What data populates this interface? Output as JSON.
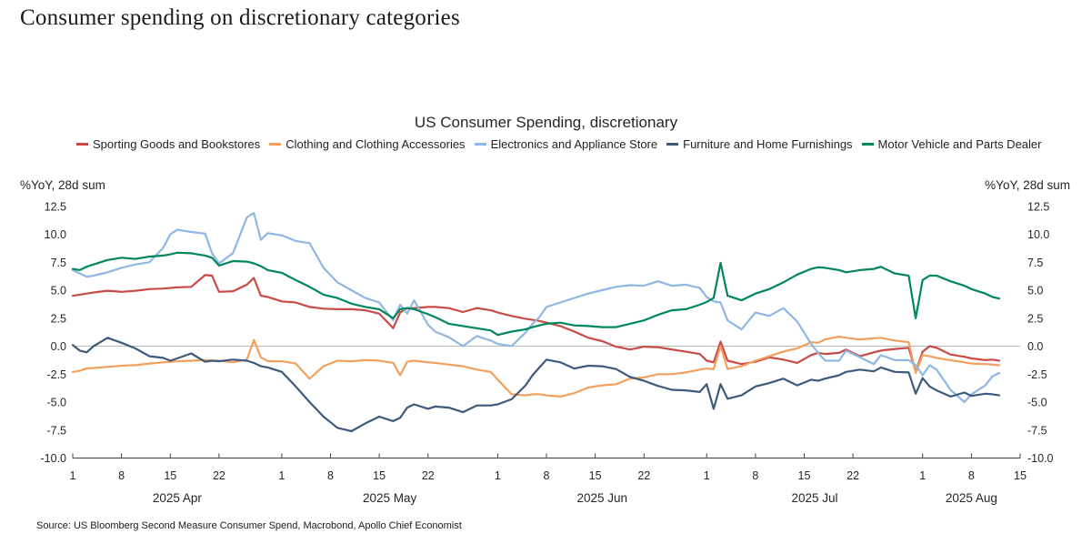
{
  "page_title": "Consumer spending on discretionary categories",
  "source": "Source: US Bloomberg Second Measure Consumer Spend, Macrobond, Apollo Chief Economist",
  "colors": {
    "zero_line": "#b9b9b9",
    "axis": "#404040",
    "tick_text": "#262626"
  },
  "chart_data": {
    "type": "line",
    "title": "US Consumer Spending, discretionary",
    "ylabel_left": "%YoY, 28d sum",
    "ylabel_right": "%YoY, 28d sum",
    "ylim": [
      -10,
      13.5
    ],
    "y_ticks": [
      12.5,
      10,
      7.5,
      5,
      2.5,
      0,
      -2.5,
      -5,
      -7.5,
      -10
    ],
    "y_tick_format": "one_decimal",
    "grid": "zero-line-only",
    "legend_position": "top-left-two-rows",
    "x_unit": "days since 2025-04-01",
    "x_domain": [
      0,
      136
    ],
    "x_ticks": [
      {
        "day": 0,
        "label": "1"
      },
      {
        "day": 7,
        "label": "8"
      },
      {
        "day": 14,
        "label": "15"
      },
      {
        "day": 21,
        "label": "22"
      },
      {
        "day": 30,
        "label": "1"
      },
      {
        "day": 37,
        "label": "8"
      },
      {
        "day": 44,
        "label": "15"
      },
      {
        "day": 51,
        "label": "22"
      },
      {
        "day": 61,
        "label": "1"
      },
      {
        "day": 68,
        "label": "8"
      },
      {
        "day": 75,
        "label": "15"
      },
      {
        "day": 82,
        "label": "22"
      },
      {
        "day": 91,
        "label": "1"
      },
      {
        "day": 98,
        "label": "8"
      },
      {
        "day": 105,
        "label": "15"
      },
      {
        "day": 112,
        "label": "22"
      },
      {
        "day": 122,
        "label": "1"
      },
      {
        "day": 129,
        "label": "8"
      },
      {
        "day": 136,
        "label": "15"
      }
    ],
    "month_labels": [
      {
        "label": "2025 Apr",
        "day": 15
      },
      {
        "label": "2025 May",
        "day": 45.5
      },
      {
        "label": "2025 Jun",
        "day": 76
      },
      {
        "label": "2025 Jul",
        "day": 106.5
      },
      {
        "label": "2025 Aug",
        "day": 129
      }
    ],
    "x": [
      0,
      1,
      2,
      3,
      5,
      7,
      9,
      11,
      13,
      14,
      15,
      17,
      19,
      20,
      21,
      23,
      25,
      26,
      27,
      28,
      30,
      32,
      34,
      36,
      38,
      40,
      42,
      44,
      46,
      47,
      48,
      49,
      51,
      52,
      54,
      56,
      58,
      60,
      61,
      63,
      65,
      66,
      67,
      68,
      70,
      72,
      74,
      76,
      78,
      80,
      82,
      84,
      86,
      88,
      90,
      91,
      92,
      93,
      94,
      96,
      98,
      100,
      102,
      104,
      106,
      107,
      108,
      110,
      111,
      113,
      115,
      116,
      118,
      120,
      121,
      122,
      123,
      124,
      126,
      128,
      129,
      131,
      132,
      133
    ],
    "series": [
      {
        "name": "Sporting Goods and Bookstores",
        "color": "#c94a46",
        "values": [
          4.5,
          4.6,
          4.7,
          4.8,
          4.95,
          4.85,
          4.95,
          5.1,
          5.15,
          5.2,
          5.25,
          5.3,
          6.35,
          6.3,
          4.85,
          4.9,
          5.5,
          6.1,
          4.5,
          4.4,
          4.0,
          3.9,
          3.5,
          3.35,
          3.3,
          3.3,
          3.2,
          2.9,
          1.6,
          3.0,
          3.4,
          3.4,
          3.5,
          3.5,
          3.4,
          3.05,
          3.4,
          3.2,
          3.0,
          2.7,
          2.45,
          2.35,
          2.25,
          2.1,
          1.8,
          1.3,
          0.75,
          0.45,
          -0.05,
          -0.3,
          -0.05,
          -0.1,
          -0.3,
          -0.5,
          -0.7,
          -1.3,
          -1.45,
          0.4,
          -1.3,
          -1.6,
          -1.4,
          -1.0,
          -1.2,
          -1.5,
          -0.8,
          -0.6,
          -0.7,
          -0.6,
          -0.3,
          -0.9,
          -0.55,
          -0.4,
          -0.25,
          -0.15,
          -2.3,
          -0.5,
          0.0,
          -0.15,
          -0.75,
          -0.95,
          -1.1,
          -1.25,
          -1.2,
          -1.3
        ]
      },
      {
        "name": "Clothing and Clothing Accessories",
        "color": "#f2a05e",
        "values": [
          -2.3,
          -2.2,
          -2.0,
          -1.95,
          -1.85,
          -1.75,
          -1.7,
          -1.55,
          -1.45,
          -1.4,
          -1.35,
          -1.3,
          -1.25,
          -1.3,
          -1.3,
          -1.45,
          -1.2,
          0.55,
          -1.0,
          -1.35,
          -1.35,
          -1.55,
          -2.9,
          -1.8,
          -1.3,
          -1.35,
          -1.25,
          -1.3,
          -1.5,
          -2.6,
          -1.4,
          -1.3,
          -1.45,
          -1.5,
          -1.65,
          -1.8,
          -2.1,
          -2.3,
          -3.0,
          -4.3,
          -4.4,
          -4.3,
          -4.3,
          -4.4,
          -4.5,
          -4.2,
          -3.7,
          -3.5,
          -3.4,
          -2.9,
          -2.8,
          -2.5,
          -2.5,
          -2.35,
          -2.1,
          -2.0,
          -2.05,
          0.0,
          -2.05,
          -1.8,
          -1.3,
          -0.9,
          -0.5,
          -0.2,
          0.35,
          0.3,
          0.6,
          0.85,
          0.75,
          0.6,
          0.7,
          0.75,
          0.5,
          0.35,
          -2.4,
          -0.8,
          -0.9,
          -1.05,
          -1.25,
          -1.45,
          -1.55,
          -1.6,
          -1.65,
          -1.7
        ]
      },
      {
        "name": "Electronics and Appliance Store",
        "color": "#8fb7e3",
        "values": [
          6.8,
          6.5,
          6.2,
          6.3,
          6.6,
          7.0,
          7.3,
          7.5,
          8.8,
          10.0,
          10.4,
          10.2,
          10.05,
          8.3,
          7.4,
          8.3,
          11.5,
          11.9,
          9.5,
          10.1,
          9.9,
          9.4,
          9.2,
          7.0,
          5.7,
          5.0,
          4.3,
          3.9,
          2.3,
          3.7,
          2.9,
          4.1,
          1.9,
          1.3,
          0.8,
          0.0,
          0.9,
          0.5,
          0.2,
          0.0,
          1.2,
          2.0,
          2.6,
          3.5,
          3.9,
          4.3,
          4.7,
          5.0,
          5.3,
          5.45,
          5.4,
          5.8,
          5.4,
          5.5,
          5.2,
          4.4,
          4.0,
          3.9,
          2.3,
          1.5,
          3.0,
          2.7,
          3.4,
          2.2,
          0.2,
          -0.6,
          -1.3,
          -1.3,
          -0.4,
          -1.0,
          -1.6,
          -0.8,
          -1.25,
          -1.25,
          -1.7,
          -2.6,
          -1.7,
          -2.1,
          -3.9,
          -5.0,
          -4.3,
          -3.5,
          -2.7,
          -2.4
        ]
      },
      {
        "name": "Furniture and Home Furnishings",
        "color": "#3d5a7c",
        "values": [
          0.1,
          -0.4,
          -0.55,
          0.0,
          0.75,
          0.3,
          -0.2,
          -0.9,
          -1.05,
          -1.3,
          -1.1,
          -0.65,
          -1.4,
          -1.3,
          -1.35,
          -1.2,
          -1.3,
          -1.5,
          -1.8,
          -1.9,
          -2.3,
          -3.6,
          -5.0,
          -6.3,
          -7.3,
          -7.6,
          -6.9,
          -6.3,
          -6.7,
          -6.4,
          -5.5,
          -5.2,
          -5.6,
          -5.4,
          -5.5,
          -5.9,
          -5.3,
          -5.3,
          -5.2,
          -4.75,
          -3.5,
          -2.6,
          -1.9,
          -1.2,
          -1.45,
          -2.0,
          -1.75,
          -1.8,
          -2.05,
          -2.75,
          -3.1,
          -3.55,
          -3.9,
          -3.95,
          -4.1,
          -3.4,
          -5.6,
          -3.4,
          -4.7,
          -4.4,
          -3.6,
          -3.3,
          -2.9,
          -3.5,
          -3.0,
          -3.1,
          -2.9,
          -2.6,
          -2.3,
          -2.1,
          -2.25,
          -1.9,
          -2.3,
          -2.35,
          -4.25,
          -2.85,
          -3.6,
          -3.95,
          -4.5,
          -4.15,
          -4.45,
          -4.25,
          -4.3,
          -4.4
        ]
      },
      {
        "name": "Motor Vehicle and Parts Dealer",
        "color": "#00875c",
        "values": [
          6.9,
          6.8,
          7.1,
          7.3,
          7.7,
          7.9,
          7.8,
          8.0,
          8.1,
          8.2,
          8.35,
          8.3,
          8.1,
          7.9,
          7.2,
          7.6,
          7.55,
          7.4,
          7.15,
          6.8,
          6.55,
          5.9,
          5.3,
          4.6,
          4.3,
          3.8,
          3.5,
          3.3,
          2.5,
          3.3,
          3.4,
          3.3,
          2.85,
          2.6,
          2.0,
          1.8,
          1.6,
          1.4,
          1.0,
          1.3,
          1.5,
          1.7,
          1.85,
          2.0,
          2.1,
          1.85,
          1.8,
          1.7,
          1.7,
          2.0,
          2.3,
          2.8,
          3.2,
          3.3,
          3.7,
          3.95,
          4.3,
          7.45,
          4.5,
          4.1,
          4.7,
          5.1,
          5.7,
          6.4,
          6.9,
          7.05,
          7.0,
          6.8,
          6.6,
          6.8,
          6.9,
          7.1,
          6.5,
          6.3,
          2.5,
          5.9,
          6.3,
          6.3,
          5.8,
          5.4,
          5.1,
          4.7,
          4.4,
          4.25
        ]
      }
    ]
  }
}
